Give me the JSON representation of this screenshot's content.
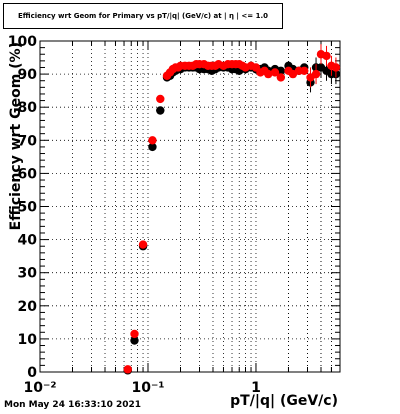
{
  "chart_data": {
    "type": "scatter",
    "title": "Efficiency wrt Geom for Primary vs pT/|q| (GeV/c) at | η | <= 1.0",
    "xlabel": "pT/|q| (GeV/c)",
    "ylabel": "Efficiency wrt Geom (%)",
    "x_scale": "log",
    "xlim": [
      0.01,
      6
    ],
    "ylim": [
      0,
      100
    ],
    "grid": true,
    "x_tick_labels": [
      "10⁻²",
      "10⁻¹",
      "1"
    ],
    "y_tick_labels": [
      "0",
      "10",
      "20",
      "30",
      "40",
      "50",
      "60",
      "70",
      "80",
      "90",
      "100"
    ],
    "series": [
      {
        "color": "#000000",
        "points": [
          [
            0.065,
            0.5
          ],
          [
            0.075,
            9.5
          ],
          [
            0.09,
            38
          ],
          [
            0.11,
            68
          ],
          [
            0.13,
            79
          ],
          [
            0.15,
            89
          ],
          [
            0.16,
            89.5
          ],
          [
            0.17,
            90.5
          ],
          [
            0.18,
            91
          ],
          [
            0.19,
            91.5
          ],
          [
            0.2,
            91.5
          ],
          [
            0.22,
            92
          ],
          [
            0.24,
            92
          ],
          [
            0.26,
            92
          ],
          [
            0.28,
            92
          ],
          [
            0.3,
            91.5
          ],
          [
            0.33,
            91.5
          ],
          [
            0.36,
            91.5
          ],
          [
            0.39,
            91
          ],
          [
            0.42,
            91.5
          ],
          [
            0.45,
            92
          ],
          [
            0.5,
            92
          ],
          [
            0.55,
            92
          ],
          [
            0.6,
            91.5
          ],
          [
            0.65,
            91.5
          ],
          [
            0.7,
            91
          ],
          [
            0.75,
            92
          ],
          [
            0.8,
            91.5
          ],
          [
            0.9,
            92
          ],
          [
            1.0,
            91.5
          ],
          [
            1.1,
            91.5
          ],
          [
            1.2,
            92
          ],
          [
            1.3,
            91
          ],
          [
            1.5,
            91.5
          ],
          [
            1.7,
            91
          ],
          [
            2.0,
            92.5
          ],
          [
            2.2,
            91.5
          ],
          [
            2.5,
            91
          ],
          [
            2.8,
            92
          ],
          [
            3.2,
            87.5
          ],
          [
            3.6,
            92
          ],
          [
            4.0,
            92
          ],
          [
            4.5,
            91
          ],
          [
            5.0,
            90
          ],
          [
            5.5,
            90
          ]
        ]
      },
      {
        "color": "#ff0000",
        "points": [
          [
            0.065,
            0.8
          ],
          [
            0.075,
            11.5
          ],
          [
            0.09,
            38.5
          ],
          [
            0.11,
            70
          ],
          [
            0.13,
            82.5
          ],
          [
            0.15,
            89.5
          ],
          [
            0.16,
            90.5
          ],
          [
            0.17,
            91.5
          ],
          [
            0.18,
            92
          ],
          [
            0.19,
            92
          ],
          [
            0.2,
            92.5
          ],
          [
            0.22,
            92.5
          ],
          [
            0.24,
            92.5
          ],
          [
            0.26,
            92.5
          ],
          [
            0.28,
            93
          ],
          [
            0.3,
            93
          ],
          [
            0.33,
            93
          ],
          [
            0.36,
            92.5
          ],
          [
            0.39,
            92.5
          ],
          [
            0.42,
            92.5
          ],
          [
            0.45,
            93
          ],
          [
            0.5,
            92.5
          ],
          [
            0.55,
            93
          ],
          [
            0.6,
            93
          ],
          [
            0.65,
            93
          ],
          [
            0.7,
            93
          ],
          [
            0.75,
            92.5
          ],
          [
            0.8,
            92
          ],
          [
            0.9,
            92.5
          ],
          [
            1.0,
            92
          ],
          [
            1.1,
            90.5
          ],
          [
            1.2,
            91
          ],
          [
            1.3,
            90
          ],
          [
            1.5,
            90.5
          ],
          [
            1.7,
            89
          ],
          [
            2.0,
            91
          ],
          [
            2.2,
            90
          ],
          [
            2.5,
            91
          ],
          [
            2.8,
            91
          ],
          [
            3.2,
            89
          ],
          [
            3.6,
            90
          ],
          [
            4.0,
            96
          ],
          [
            4.5,
            95.5
          ],
          [
            5.0,
            92.5
          ],
          [
            5.5,
            92
          ]
        ]
      }
    ]
  },
  "footer": {
    "timestamp": "Mon May 24 16:33:10 2021"
  }
}
